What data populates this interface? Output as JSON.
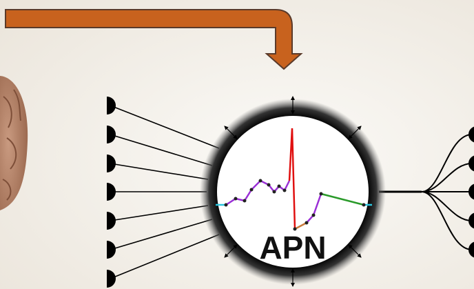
{
  "node": {
    "label": "APN"
  }
}
